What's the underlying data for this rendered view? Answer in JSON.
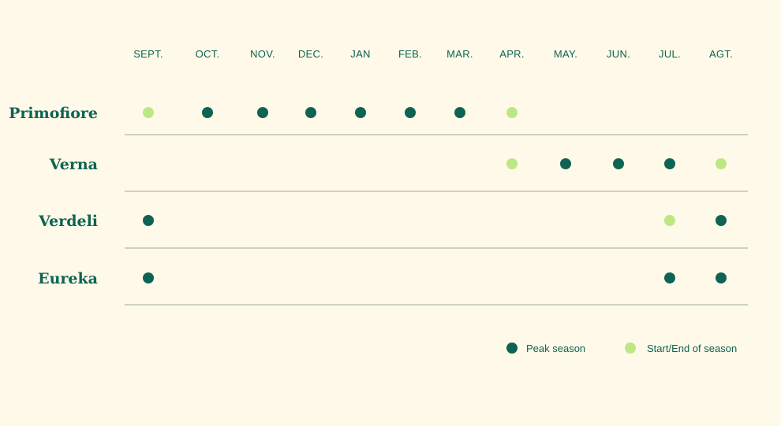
{
  "colors": {
    "background": "#fef9e8",
    "peak": "#0e6352",
    "start_end": "#bde783",
    "text": "#0e6352",
    "divider": "#9aab97"
  },
  "chart_data": {
    "type": "scatter",
    "title": "",
    "months": [
      "SEPT.",
      "OCT.",
      "NOV.",
      "DEC.",
      "JAN",
      "FEB.",
      "MAR.",
      "APR.",
      "MAY.",
      "JUN.",
      "JUL.",
      "AGT."
    ],
    "series": [
      {
        "name": "Primofiore",
        "points": [
          {
            "month": "SEPT.",
            "status": "start_end"
          },
          {
            "month": "OCT.",
            "status": "peak"
          },
          {
            "month": "NOV.",
            "status": "peak"
          },
          {
            "month": "DEC.",
            "status": "peak"
          },
          {
            "month": "JAN",
            "status": "peak"
          },
          {
            "month": "FEB.",
            "status": "peak"
          },
          {
            "month": "MAR.",
            "status": "peak"
          },
          {
            "month": "APR.",
            "status": "start_end"
          }
        ]
      },
      {
        "name": "Verna",
        "points": [
          {
            "month": "APR.",
            "status": "start_end"
          },
          {
            "month": "MAY.",
            "status": "peak"
          },
          {
            "month": "JUN.",
            "status": "peak"
          },
          {
            "month": "JUL.",
            "status": "peak"
          },
          {
            "month": "AGT.",
            "status": "start_end"
          }
        ]
      },
      {
        "name": "Verdeli",
        "points": [
          {
            "month": "SEPT.",
            "status": "peak"
          },
          {
            "month": "JUL.",
            "status": "start_end"
          },
          {
            "month": "AGT.",
            "status": "peak"
          }
        ]
      },
      {
        "name": "Eureka",
        "points": [
          {
            "month": "SEPT.",
            "status": "peak"
          },
          {
            "month": "JUL.",
            "status": "peak"
          },
          {
            "month": "AGT.",
            "status": "peak"
          }
        ]
      }
    ],
    "legend": [
      {
        "key": "peak",
        "label": "Peak season"
      },
      {
        "key": "start_end",
        "label": "Start/End of season"
      }
    ],
    "legend_position": "bottom-right"
  }
}
